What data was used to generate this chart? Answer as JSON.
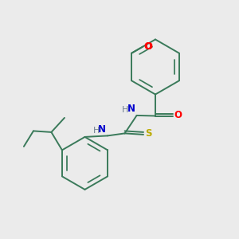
{
  "background_color": "#ebebeb",
  "bond_color": "#3a7a5a",
  "atom_colors": {
    "O": "#ff0000",
    "N": "#0000cd",
    "S": "#bbaa00",
    "H_label": "#708090",
    "C": "#3a7a5a"
  },
  "figsize": [
    3.0,
    3.0
  ],
  "dpi": 100
}
